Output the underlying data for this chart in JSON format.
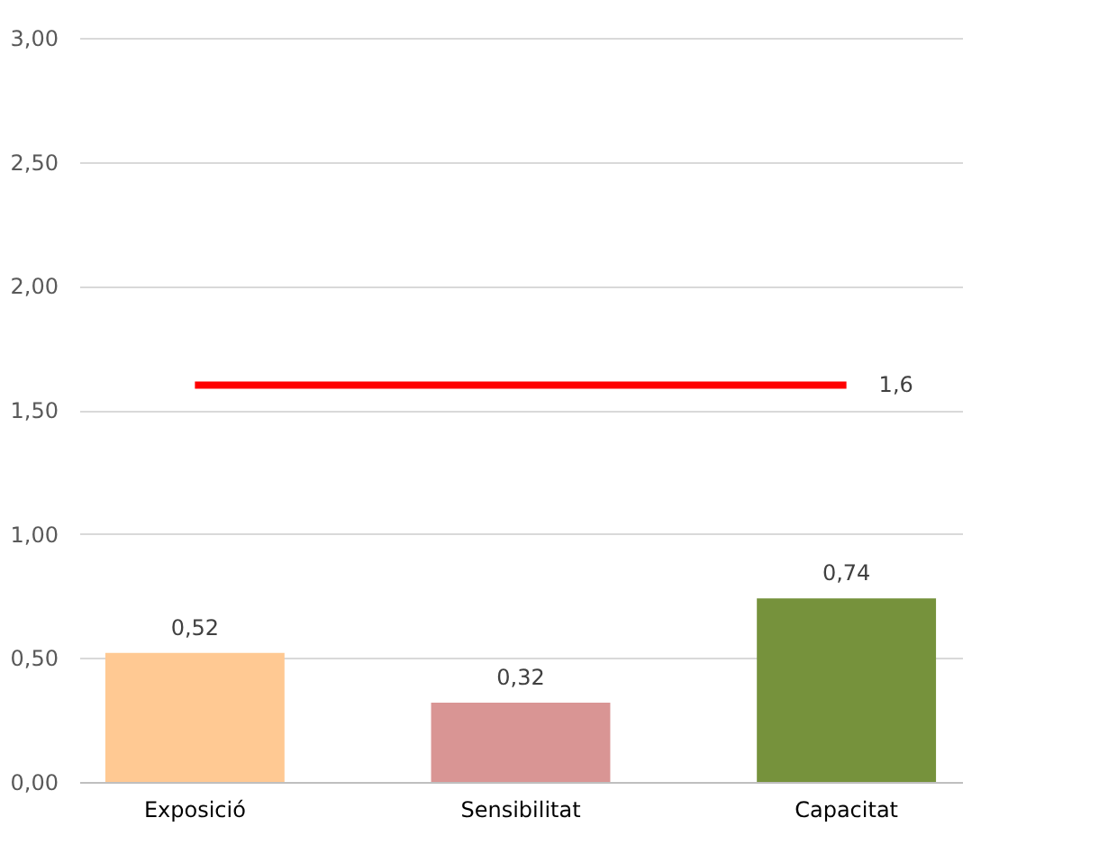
{
  "chart_data": {
    "type": "bar",
    "categories": [
      "Exposició",
      "Sensibilitat",
      "Capacitat"
    ],
    "series": [
      {
        "colors": [
          "#ffc993",
          "#d99594",
          "#76923c"
        ],
        "values": [
          0.52,
          0.32,
          0.74
        ],
        "value_labels": [
          "0,52",
          "0,32",
          "0,74"
        ]
      },
      {
        "type": "line",
        "color": "#ff0000",
        "values": [
          1.6,
          1.6,
          1.6
        ],
        "value_labels": [
          null,
          null,
          "1,6"
        ]
      }
    ],
    "ylim": [
      0,
      3
    ],
    "yticks": [
      {
        "value": 0,
        "label": "0,00"
      },
      {
        "value": 0.5,
        "label": "0,50"
      },
      {
        "value": 1,
        "label": "1,00"
      },
      {
        "value": 1.5,
        "label": "1,50"
      },
      {
        "value": 2,
        "label": "2,00"
      },
      {
        "value": 2.5,
        "label": "2,50"
      },
      {
        "value": 3,
        "label": "3,00"
      }
    ],
    "grid": "y"
  }
}
